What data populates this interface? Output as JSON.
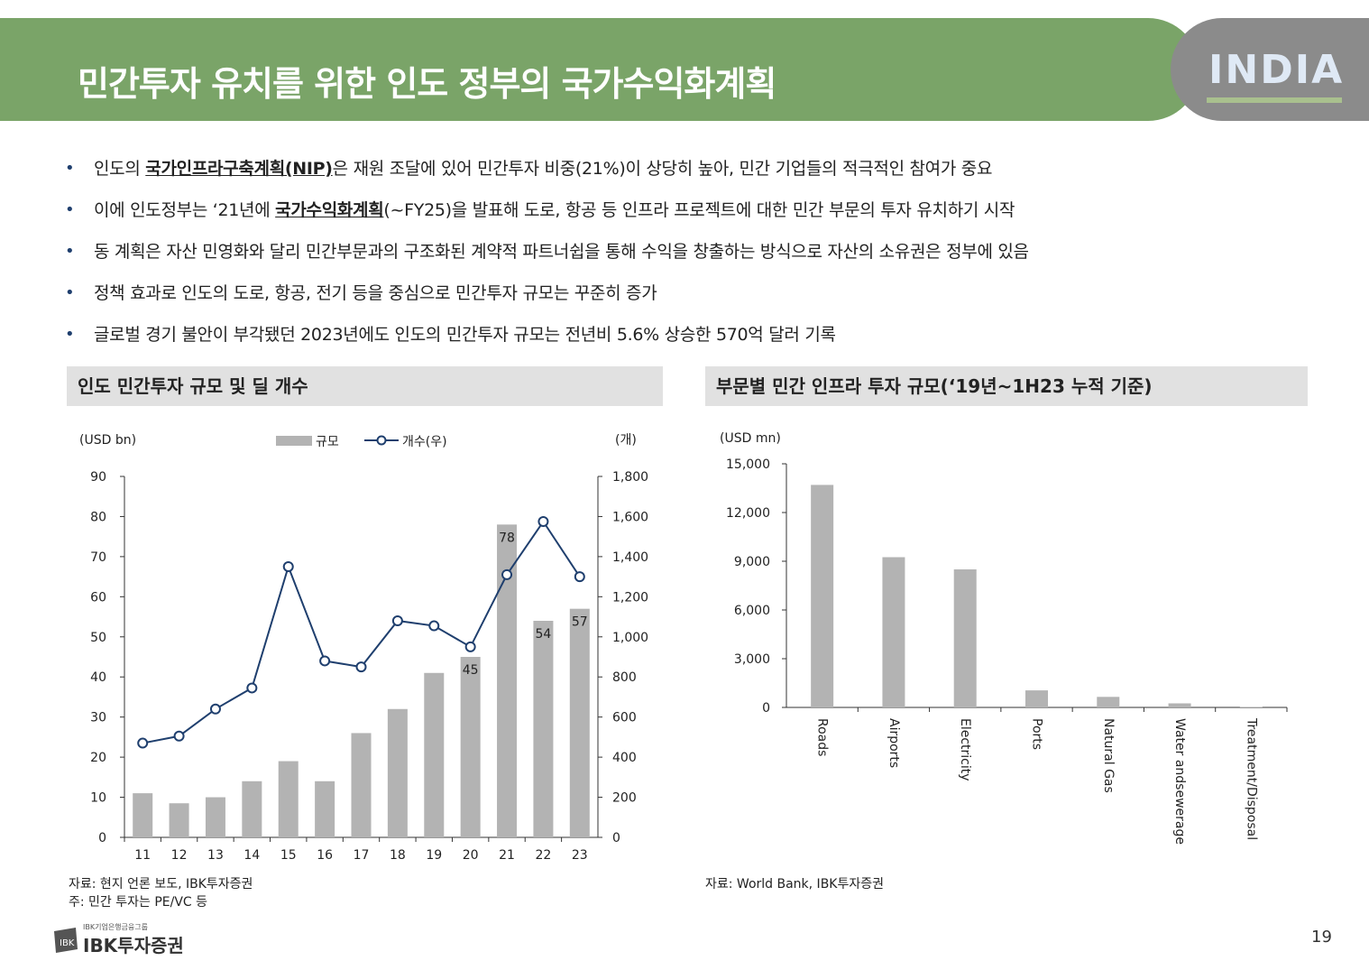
{
  "page": {
    "title": "민간투자 유치를 위한 인도 정부의 국가수익화계획",
    "badge_text": "INDIA",
    "page_number": "19",
    "logo": {
      "small": "IBK기업은행금융그룹",
      "main": "IBK투자증권"
    }
  },
  "bullets": [
    {
      "pre": "인도의 ",
      "bold": "국가인프라구축계획(NIP)",
      "post": "은 재원 조달에 있어 민간투자 비중(21%)이 상당히 높아, 민간 기업들의 적극적인 참여가 중요"
    },
    {
      "pre": "이에 인도정부는 ‘21년에 ",
      "bold": "국가수익화계획",
      "post": "(~FY25)을 발표해 도로, 항공 등 인프라 프로젝트에 대한 민간 부문의 투자 유치하기 시작"
    },
    {
      "pre": "동 계획은 자산 민영화와 달리 민간부문과의 구조화된 계약적 파트너쉽을 통해 수익을 창출하는 방식으로 자산의 소유권은 정부에 있음",
      "bold": "",
      "post": ""
    },
    {
      "pre": "정책 효과로 인도의 도로, 항공, 전기 등을 중심으로 민간투자 규모는 꾸준히 증가",
      "bold": "",
      "post": ""
    },
    {
      "pre": "글로벌 경기 불안이 부각됐던 2023년에도 인도의 민간투자 규모는 전년비 5.6% 상승한 570억 달러 기록",
      "bold": "",
      "post": ""
    }
  ],
  "left_section": {
    "heading": "인도 민간투자 규모 및 딜 개수",
    "source": "자료: 현지 언론 보도, IBK투자증권",
    "note": "주: 민간 투자는 PE/VC 등"
  },
  "right_section": {
    "heading": "부문별 민간 인프라 투자 규모(‘19년~1H23 누적 기준)",
    "source": "자료: World Bank, IBK투자증권"
  },
  "chart_data": [
    {
      "type": "bar",
      "categories": [
        "11",
        "12",
        "13",
        "14",
        "15",
        "16",
        "17",
        "18",
        "19",
        "20",
        "21",
        "22",
        "23"
      ],
      "series": [
        {
          "name": "규모",
          "type": "bar",
          "axis": "left",
          "values": [
            11,
            8.5,
            10,
            14,
            19,
            14,
            26,
            32,
            41,
            45,
            78,
            54,
            57
          ],
          "color": "#b3b3b3"
        },
        {
          "name": "개수(우)",
          "type": "line",
          "axis": "right",
          "values": [
            470,
            505,
            640,
            745,
            1350,
            880,
            850,
            1080,
            1055,
            950,
            1310,
            1575,
            1300
          ],
          "color": "#1f3f6e"
        }
      ],
      "data_labels": {
        "20": "45",
        "21": "78",
        "22": "54",
        "23": "57"
      },
      "ylabel_left": "(USD bn)",
      "ylabel_right": "(개)",
      "ylim_left": [
        0,
        90
      ],
      "ylim_right": [
        0,
        1800
      ],
      "yticks_left": [
        "0",
        "10",
        "20",
        "30",
        "40",
        "50",
        "60",
        "70",
        "80",
        "90"
      ],
      "yticks_right": [
        "0",
        "200",
        "400",
        "600",
        "800",
        "1,000",
        "1,200",
        "1,400",
        "1,600",
        "1,800"
      ],
      "legend": "top-center",
      "grid": false
    },
    {
      "type": "bar",
      "categories": [
        "Roads",
        "Airports",
        "Electricity",
        "Ports",
        "Natural Gas",
        "Water andsewerage",
        "Treatment/Disposal"
      ],
      "values": [
        13700,
        9250,
        8500,
        1050,
        650,
        250,
        30
      ],
      "color": "#b3b3b3",
      "ylabel": "(USD mn)",
      "ylim": [
        0,
        15000
      ],
      "yticks": [
        "0",
        "3,000",
        "6,000",
        "9,000",
        "12,000",
        "15,000"
      ],
      "grid": false
    }
  ]
}
